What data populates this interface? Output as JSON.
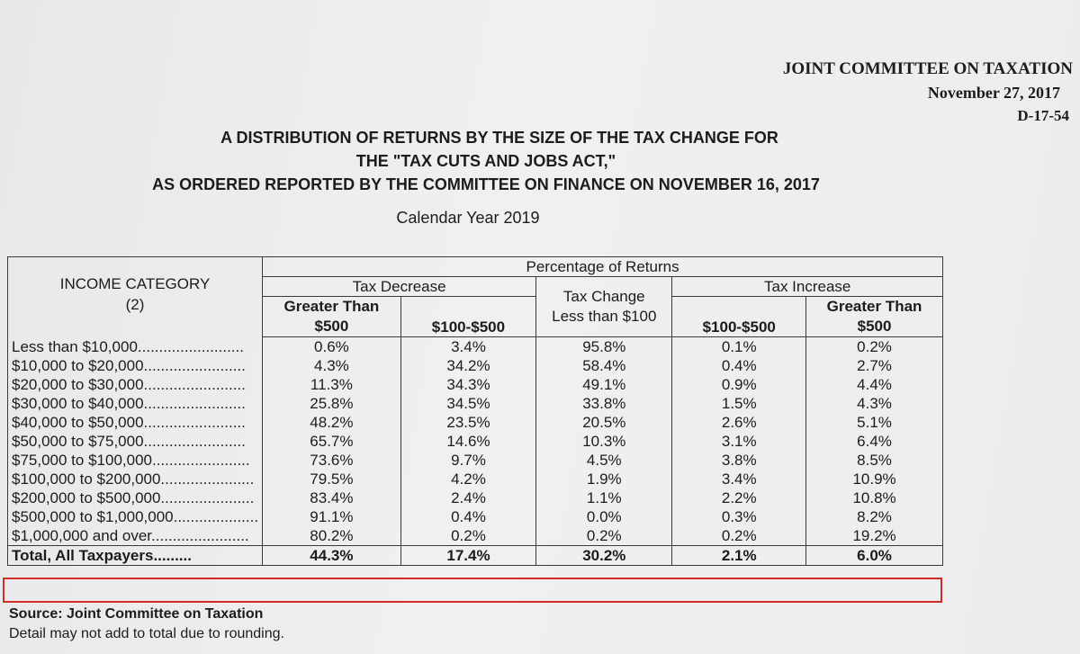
{
  "header": {
    "org": "JOINT COMMITTEE ON TAXATION",
    "date": "November 27, 2017",
    "doc_id": "D-17-54"
  },
  "title": {
    "line1": "A DISTRIBUTION OF RETURNS BY THE SIZE OF THE TAX CHANGE FOR",
    "line2": "THE \"TAX CUTS AND JOBS ACT,\"",
    "line3": "AS ORDERED REPORTED BY THE COMMITTEE ON FINANCE ON NOVEMBER 16, 2017"
  },
  "subtitle": "Calendar Year 2019",
  "table": {
    "income_header": "INCOME CATEGORY (2)",
    "pct_header": "Percentage of Returns",
    "group_decrease": "Tax Decrease",
    "group_change": "Tax Change Less than $100",
    "group_increase": "Tax Increase",
    "col_gt500": "Greater Than $500",
    "col_100_500": "$100-$500",
    "rows": [
      {
        "cat": "Less than $10,000.........................",
        "v": [
          "0.6%",
          "3.4%",
          "95.8%",
          "0.1%",
          "0.2%"
        ]
      },
      {
        "cat": "$10,000 to $20,000........................",
        "v": [
          "4.3%",
          "34.2%",
          "58.4%",
          "0.4%",
          "2.7%"
        ]
      },
      {
        "cat": "$20,000 to $30,000........................",
        "v": [
          "11.3%",
          "34.3%",
          "49.1%",
          "0.9%",
          "4.4%"
        ]
      },
      {
        "cat": "$30,000 to $40,000........................",
        "v": [
          "25.8%",
          "34.5%",
          "33.8%",
          "1.5%",
          "4.3%"
        ]
      },
      {
        "cat": "$40,000 to $50,000........................",
        "v": [
          "48.2%",
          "23.5%",
          "20.5%",
          "2.6%",
          "5.1%"
        ]
      },
      {
        "cat": "$50,000 to $75,000........................",
        "v": [
          "65.7%",
          "14.6%",
          "10.3%",
          "3.1%",
          "6.4%"
        ]
      },
      {
        "cat": "$75,000 to $100,000.......................",
        "v": [
          "73.6%",
          "9.7%",
          "4.5%",
          "3.8%",
          "8.5%"
        ]
      },
      {
        "cat": "$100,000 to $200,000......................",
        "v": [
          "79.5%",
          "4.2%",
          "1.9%",
          "3.4%",
          "10.9%"
        ]
      },
      {
        "cat": "$200,000 to $500,000......................",
        "v": [
          "83.4%",
          "2.4%",
          "1.1%",
          "2.2%",
          "10.8%"
        ]
      },
      {
        "cat": "$500,000 to $1,000,000....................",
        "v": [
          "91.1%",
          "0.4%",
          "0.0%",
          "0.3%",
          "8.2%"
        ]
      },
      {
        "cat": "$1,000,000 and over.......................",
        "v": [
          "80.2%",
          "0.2%",
          "0.2%",
          "0.2%",
          "19.2%"
        ]
      }
    ],
    "total": {
      "cat": "Total, All Taxpayers.........",
      "v": [
        "44.3%",
        "17.4%",
        "30.2%",
        "2.1%",
        "6.0%"
      ]
    }
  },
  "footer": {
    "source": "Source:  Joint Committee on Taxation",
    "note": "Detail may not add to total due to rounding."
  },
  "colors": {
    "highlight": "#d42a2a",
    "ink": "#1c1c1c",
    "paper": "#ececee"
  }
}
